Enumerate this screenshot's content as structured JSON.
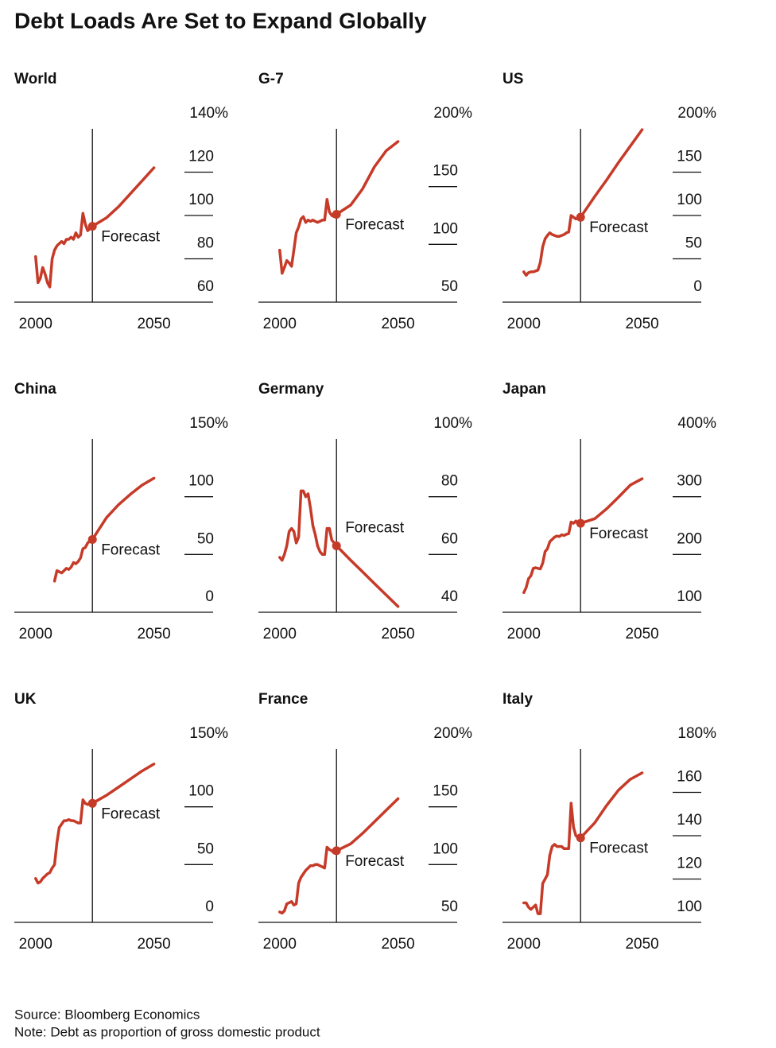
{
  "title": "Debt Loads Are Set to Expand Globally",
  "source": "Source: Bloomberg Economics",
  "note": "Note: Debt as proportion of gross domestic product",
  "chart_data": [
    {
      "type": "line",
      "title": "World",
      "annotation": "Forecast",
      "forecast_start": 2024,
      "color": "#c63a28",
      "x": [
        2000,
        2001,
        2002,
        2003,
        2004,
        2005,
        2006,
        2007,
        2008,
        2009,
        2010,
        2011,
        2012,
        2013,
        2014,
        2015,
        2016,
        2017,
        2018,
        2019,
        2020,
        2021,
        2022,
        2023,
        2024,
        2030,
        2035,
        2040,
        2045,
        2050
      ],
      "values": [
        81,
        69,
        71,
        76,
        73,
        69,
        67,
        80,
        84,
        86,
        87,
        88,
        87,
        89,
        89,
        90,
        89,
        92,
        90,
        91,
        101,
        96,
        93,
        94,
        95,
        99,
        104,
        110,
        116,
        122
      ],
      "xlim": [
        1991,
        2075
      ],
      "xticks": [
        2000,
        2050
      ],
      "ylim": [
        60,
        140
      ],
      "yticks": [
        60,
        80,
        100,
        120,
        {
          "value": 140,
          "label": "140%"
        }
      ]
    },
    {
      "type": "line",
      "title": "G-7",
      "annotation": "Forecast",
      "forecast_start": 2024,
      "color": "#c63a28",
      "x": [
        2000,
        2001,
        2002,
        2003,
        2004,
        2005,
        2006,
        2007,
        2008,
        2009,
        2010,
        2011,
        2012,
        2013,
        2014,
        2015,
        2016,
        2017,
        2018,
        2019,
        2020,
        2021,
        2022,
        2023,
        2024,
        2030,
        2035,
        2040,
        2045,
        2050
      ],
      "values": [
        95,
        75,
        80,
        86,
        84,
        81,
        95,
        110,
        115,
        122,
        124,
        119,
        121,
        120,
        121,
        120,
        119,
        120,
        121,
        121,
        139,
        128,
        125,
        124,
        126,
        134,
        148,
        167,
        181,
        189
      ],
      "xlim": [
        1991,
        2075
      ],
      "xticks": [
        2000,
        2050
      ],
      "ylim": [
        50,
        200
      ],
      "yticks": [
        50,
        100,
        150,
        {
          "value": 200,
          "label": "200%"
        }
      ]
    },
    {
      "type": "line",
      "title": "US",
      "annotation": "Forecast",
      "forecast_start": 2024,
      "color": "#c63a28",
      "x": [
        2000,
        2001,
        2002,
        2003,
        2004,
        2005,
        2006,
        2007,
        2008,
        2009,
        2010,
        2011,
        2012,
        2013,
        2014,
        2015,
        2016,
        2017,
        2018,
        2019,
        2020,
        2021,
        2022,
        2023,
        2024,
        2030,
        2035,
        2040,
        2045,
        2050
      ],
      "values": [
        35,
        31,
        34,
        35,
        35,
        36,
        37,
        46,
        64,
        73,
        77,
        80,
        78,
        77,
        76,
        76,
        77,
        78,
        80,
        81,
        100,
        98,
        96,
        97,
        98,
        122,
        141,
        161,
        180,
        199
      ],
      "xlim": [
        1991,
        2075
      ],
      "xticks": [
        2000,
        2050
      ],
      "ylim": [
        0,
        200
      ],
      "yticks": [
        0,
        50,
        100,
        150,
        {
          "value": 200,
          "label": "200%"
        }
      ]
    },
    {
      "type": "line",
      "title": "China",
      "annotation": "Forecast",
      "forecast_start": 2024,
      "color": "#c63a28",
      "x": [
        2008,
        2009,
        2010,
        2011,
        2012,
        2013,
        2014,
        2015,
        2016,
        2017,
        2018,
        2019,
        2020,
        2021,
        2022,
        2023,
        2024,
        2030,
        2035,
        2040,
        2045,
        2050
      ],
      "values": [
        27,
        36,
        35,
        34,
        36,
        38,
        37,
        39,
        43,
        42,
        44,
        47,
        55,
        56,
        60,
        62,
        63,
        82,
        93,
        102,
        110,
        116
      ],
      "xlim": [
        1991,
        2075
      ],
      "xticks": [
        2000,
        2050
      ],
      "ylim": [
        0,
        150
      ],
      "yticks": [
        0,
        50,
        100,
        {
          "value": 150,
          "label": "150%"
        }
      ]
    },
    {
      "type": "line",
      "title": "Germany",
      "annotation": "Forecast",
      "forecast_start": 2024,
      "color": "#c63a28",
      "x": [
        2000,
        2001,
        2002,
        2003,
        2004,
        2005,
        2006,
        2007,
        2008,
        2009,
        2010,
        2011,
        2012,
        2013,
        2014,
        2015,
        2016,
        2017,
        2018,
        2019,
        2020,
        2021,
        2022,
        2023,
        2024,
        2030,
        2035,
        2040,
        2045,
        2050
      ],
      "values": [
        59,
        58,
        60,
        63,
        68,
        69,
        68,
        64,
        66,
        82,
        82,
        80,
        81,
        76,
        70,
        67,
        63,
        61,
        60,
        60,
        69,
        69,
        65,
        64,
        63,
        58,
        54,
        50,
        46,
        42
      ],
      "xlim": [
        1991,
        2075
      ],
      "xticks": [
        2000,
        2050
      ],
      "ylim": [
        40,
        100
      ],
      "yticks": [
        40,
        60,
        80,
        {
          "value": 100,
          "label": "100%"
        }
      ]
    },
    {
      "type": "line",
      "title": "Japan",
      "annotation": "Forecast",
      "forecast_start": 2024,
      "color": "#c63a28",
      "x": [
        2000,
        2001,
        2002,
        2003,
        2004,
        2005,
        2006,
        2007,
        2008,
        2009,
        2010,
        2011,
        2012,
        2013,
        2014,
        2015,
        2016,
        2017,
        2018,
        2019,
        2020,
        2021,
        2022,
        2023,
        2024,
        2030,
        2035,
        2040,
        2045,
        2050
      ],
      "values": [
        134,
        143,
        158,
        163,
        176,
        177,
        176,
        175,
        185,
        205,
        210,
        222,
        226,
        230,
        232,
        231,
        234,
        233,
        235,
        236,
        256,
        254,
        258,
        252,
        254,
        262,
        279,
        299,
        320,
        331
      ],
      "xlim": [
        1991,
        2075
      ],
      "xticks": [
        2000,
        2050
      ],
      "ylim": [
        100,
        400
      ],
      "yticks": [
        100,
        200,
        300,
        {
          "value": 400,
          "label": "400%"
        }
      ]
    },
    {
      "type": "line",
      "title": "UK",
      "annotation": "Forecast",
      "forecast_start": 2024,
      "color": "#c63a28",
      "x": [
        2000,
        2001,
        2002,
        2003,
        2004,
        2005,
        2006,
        2007,
        2008,
        2009,
        2010,
        2011,
        2012,
        2013,
        2014,
        2015,
        2016,
        2017,
        2018,
        2019,
        2020,
        2021,
        2022,
        2023,
        2024,
        2030,
        2035,
        2040,
        2045,
        2050
      ],
      "values": [
        38,
        34,
        35,
        38,
        40,
        42,
        43,
        47,
        50,
        69,
        82,
        85,
        88,
        88,
        89,
        88,
        88,
        87,
        86,
        86,
        106,
        103,
        102,
        103,
        103,
        110,
        117,
        124,
        131,
        137
      ],
      "xlim": [
        1991,
        2075
      ],
      "xticks": [
        2000,
        2050
      ],
      "ylim": [
        0,
        150
      ],
      "yticks": [
        0,
        50,
        100,
        {
          "value": 150,
          "label": "150%"
        }
      ]
    },
    {
      "type": "line",
      "title": "France",
      "annotation": "Forecast",
      "forecast_start": 2024,
      "color": "#c63a28",
      "x": [
        2000,
        2001,
        2002,
        2003,
        2004,
        2005,
        2006,
        2007,
        2008,
        2009,
        2010,
        2011,
        2012,
        2013,
        2014,
        2015,
        2016,
        2017,
        2018,
        2019,
        2020,
        2021,
        2022,
        2023,
        2024,
        2030,
        2035,
        2040,
        2045,
        2050
      ],
      "values": [
        59,
        58,
        60,
        66,
        67,
        68,
        65,
        66,
        84,
        89,
        92,
        95,
        97,
        99,
        99,
        100,
        100,
        99,
        98,
        97,
        115,
        113,
        112,
        110,
        112,
        118,
        127,
        137,
        147,
        157
      ],
      "xlim": [
        1991,
        2075
      ],
      "xticks": [
        2000,
        2050
      ],
      "ylim": [
        50,
        200
      ],
      "yticks": [
        50,
        100,
        150,
        {
          "value": 200,
          "label": "200%"
        }
      ]
    },
    {
      "type": "line",
      "title": "Italy",
      "annotation": "Forecast",
      "forecast_start": 2024,
      "color": "#c63a28",
      "x": [
        2000,
        2001,
        2002,
        2003,
        2004,
        2005,
        2006,
        2007,
        2008,
        2009,
        2010,
        2011,
        2012,
        2013,
        2014,
        2015,
        2016,
        2017,
        2018,
        2019,
        2020,
        2021,
        2022,
        2023,
        2024,
        2030,
        2035,
        2040,
        2045,
        2050
      ],
      "values": [
        109,
        109,
        107,
        106,
        107,
        108,
        104,
        104,
        118,
        120,
        122,
        131,
        135,
        136,
        135,
        135,
        135,
        134,
        134,
        134,
        155,
        144,
        140,
        139,
        139,
        146,
        154,
        161,
        166,
        169
      ],
      "xlim": [
        1991,
        2075
      ],
      "xticks": [
        2000,
        2050
      ],
      "ylim": [
        100,
        180
      ],
      "yticks": [
        100,
        120,
        140,
        160,
        {
          "value": 180,
          "label": "180%"
        }
      ]
    }
  ]
}
